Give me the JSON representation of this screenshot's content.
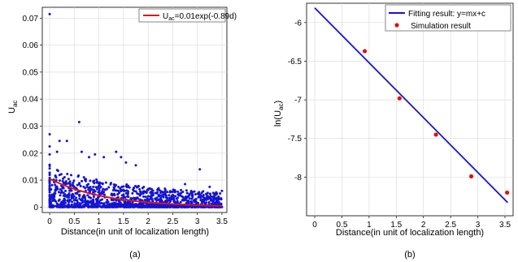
{
  "panels": {
    "a": {
      "caption": "(a)",
      "ylabel_main": "U",
      "ylabel_sub": "ac",
      "xlabel": "Distance(in unit of localization length)",
      "legend": {
        "prefix": "U",
        "sub": "ac",
        "suffix": "=0.01exp(-0.89d)"
      }
    },
    "b": {
      "caption": "(b)",
      "ylabel_pre": "ln(U",
      "ylabel_sub": "ac",
      "ylabel_post": ")",
      "xlabel": "Distance(in unit of localization length)",
      "legend_line": "Fitting result: y=mx+c",
      "legend_points": "Simulation result"
    }
  },
  "colors": {
    "points": "#1414d2",
    "fit_a": "#dc1414",
    "fit_b": "#1414d2",
    "points_b": "#e01010",
    "grid": "#d9d9d9"
  },
  "chart_data": [
    {
      "type": "scatter",
      "panel": "a",
      "xlabel": "Distance(in unit of localization length)",
      "ylabel": "U_ac",
      "xlim": [
        -0.15,
        3.6
      ],
      "ylim": [
        -0.002,
        0.074
      ],
      "xticks": [
        "0",
        "0.5",
        "1",
        "1.5",
        "2",
        "2.5",
        "3",
        "3.5"
      ],
      "yticks": [
        "0",
        "0.01",
        "0.02",
        "0.03",
        "0.04",
        "0.05",
        "0.06",
        "0.07"
      ],
      "grid": true,
      "legend_position": "top-right",
      "series": [
        {
          "name": "U_ac=0.01exp(-0.89d)",
          "kind": "line",
          "function": {
            "a": 0.0105,
            "b": -0.89
          },
          "x_range": [
            0,
            3.5
          ]
        },
        {
          "kind": "scatter",
          "x_max": 3.5,
          "typical_max": 0.012,
          "notable_points": [
            {
              "x": 0.0,
              "y": 0.0715
            },
            {
              "x": 0.0,
              "y": 0.027
            },
            {
              "x": 0.0,
              "y": 0.0225
            },
            {
              "x": 0.0,
              "y": 0.0195
            },
            {
              "x": 0.2,
              "y": 0.0245
            },
            {
              "x": 0.15,
              "y": 0.0205
            },
            {
              "x": 0.35,
              "y": 0.0245
            },
            {
              "x": 0.6,
              "y": 0.0315
            },
            {
              "x": 0.65,
              "y": 0.0205
            },
            {
              "x": 0.8,
              "y": 0.0185
            },
            {
              "x": 0.92,
              "y": 0.0195
            },
            {
              "x": 1.1,
              "y": 0.0185
            },
            {
              "x": 1.35,
              "y": 0.0205
            },
            {
              "x": 1.45,
              "y": 0.0185
            },
            {
              "x": 1.55,
              "y": 0.0165
            },
            {
              "x": 1.75,
              "y": 0.0155
            },
            {
              "x": 3.05,
              "y": 0.014
            },
            {
              "x": 2.75,
              "y": 0.0085
            },
            {
              "x": 3.25,
              "y": 0.0075
            },
            {
              "x": 3.5,
              "y": 0.006
            }
          ]
        }
      ]
    },
    {
      "type": "scatter",
      "panel": "b",
      "xlabel": "Distance(in unit of localization length)",
      "ylabel": "ln(U_ac)",
      "xlim": [
        -0.15,
        3.65
      ],
      "ylim": [
        -8.5,
        -5.75
      ],
      "xticks": [
        "0",
        "0.5",
        "1",
        "1.5",
        "2",
        "2.5",
        "3",
        "3.5"
      ],
      "yticks": [
        "-6",
        "-6.5",
        "-7",
        "-7.5",
        "-8"
      ],
      "grid": true,
      "legend_position": "top-right",
      "series": [
        {
          "name": "Fitting result: y=mx+c",
          "kind": "line",
          "x": [
            0,
            3.55
          ],
          "y": [
            -5.81,
            -8.33
          ]
        },
        {
          "name": "Simulation result",
          "kind": "scatter",
          "x": [
            0.92,
            1.56,
            2.23,
            2.88,
            3.54
          ],
          "y": [
            -6.37,
            -6.98,
            -7.45,
            -7.99,
            -8.2
          ]
        }
      ]
    }
  ]
}
